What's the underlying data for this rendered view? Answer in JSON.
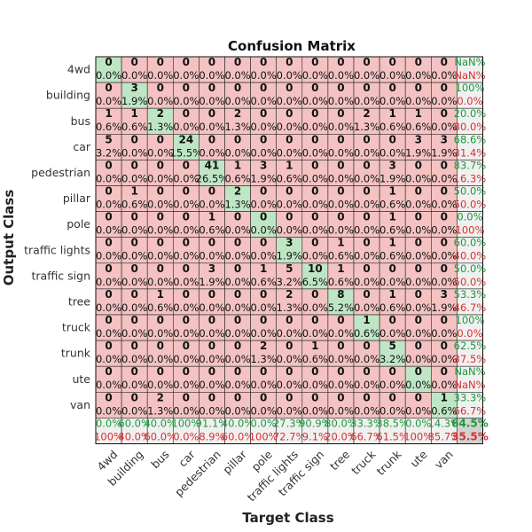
{
  "chart_data": {
    "type": "heatmap",
    "title": "Confusion Matrix",
    "xlabel": "Target Class",
    "ylabel": "Output Class",
    "classes": [
      "4wd",
      "building",
      "bus",
      "car",
      "pedestrian",
      "pillar",
      "pole",
      "traffic lights",
      "traffic sign",
      "tree",
      "truck",
      "trunk",
      "ute",
      "van"
    ],
    "matrix": [
      [
        0,
        0,
        0,
        0,
        0,
        0,
        0,
        0,
        0,
        0,
        0,
        0,
        0,
        0
      ],
      [
        0,
        3,
        0,
        0,
        0,
        0,
        0,
        0,
        0,
        0,
        0,
        0,
        0,
        0
      ],
      [
        1,
        1,
        2,
        0,
        0,
        2,
        0,
        0,
        0,
        0,
        2,
        1,
        1,
        0
      ],
      [
        5,
        0,
        0,
        24,
        0,
        0,
        0,
        0,
        0,
        0,
        0,
        0,
        3,
        3
      ],
      [
        0,
        0,
        0,
        0,
        41,
        1,
        3,
        1,
        0,
        0,
        0,
        3,
        0,
        0
      ],
      [
        0,
        1,
        0,
        0,
        0,
        2,
        0,
        0,
        0,
        0,
        0,
        1,
        0,
        0
      ],
      [
        0,
        0,
        0,
        0,
        1,
        0,
        0,
        0,
        0,
        0,
        0,
        1,
        0,
        0
      ],
      [
        0,
        0,
        0,
        0,
        0,
        0,
        0,
        3,
        0,
        1,
        0,
        1,
        0,
        0
      ],
      [
        0,
        0,
        0,
        0,
        3,
        0,
        1,
        5,
        10,
        1,
        0,
        0,
        0,
        0
      ],
      [
        0,
        0,
        1,
        0,
        0,
        0,
        0,
        2,
        0,
        8,
        0,
        1,
        0,
        3
      ],
      [
        0,
        0,
        0,
        0,
        0,
        0,
        0,
        0,
        0,
        0,
        1,
        0,
        0,
        0
      ],
      [
        0,
        0,
        0,
        0,
        0,
        0,
        2,
        0,
        1,
        0,
        0,
        5,
        0,
        0
      ],
      [
        0,
        0,
        0,
        0,
        0,
        0,
        0,
        0,
        0,
        0,
        0,
        0,
        0,
        0
      ],
      [
        0,
        0,
        2,
        0,
        0,
        0,
        0,
        0,
        0,
        0,
        0,
        0,
        0,
        1
      ]
    ],
    "cell_percent": [
      [
        "0.0%",
        "0.0%",
        "0.0%",
        "0.0%",
        "0.0%",
        "0.0%",
        "0.0%",
        "0.0%",
        "0.0%",
        "0.0%",
        "0.0%",
        "0.0%",
        "0.0%",
        "0.0%"
      ],
      [
        "0.0%",
        "1.9%",
        "0.0%",
        "0.0%",
        "0.0%",
        "0.0%",
        "0.0%",
        "0.0%",
        "0.0%",
        "0.0%",
        "0.0%",
        "0.0%",
        "0.0%",
        "0.0%"
      ],
      [
        "0.6%",
        "0.6%",
        "1.3%",
        "0.0%",
        "0.0%",
        "1.3%",
        "0.0%",
        "0.0%",
        "0.0%",
        "0.0%",
        "1.3%",
        "0.6%",
        "0.6%",
        "0.0%"
      ],
      [
        "3.2%",
        "0.0%",
        "0.0%",
        "15.5%",
        "0.0%",
        "0.0%",
        "0.0%",
        "0.0%",
        "0.0%",
        "0.0%",
        "0.0%",
        "0.0%",
        "1.9%",
        "1.9%"
      ],
      [
        "0.0%",
        "0.0%",
        "0.0%",
        "0.0%",
        "26.5%",
        "0.6%",
        "1.9%",
        "0.6%",
        "0.0%",
        "0.0%",
        "0.0%",
        "1.9%",
        "0.0%",
        "0.0%"
      ],
      [
        "0.0%",
        "0.6%",
        "0.0%",
        "0.0%",
        "0.0%",
        "1.3%",
        "0.0%",
        "0.0%",
        "0.0%",
        "0.0%",
        "0.0%",
        "0.6%",
        "0.0%",
        "0.0%"
      ],
      [
        "0.0%",
        "0.0%",
        "0.0%",
        "0.0%",
        "0.6%",
        "0.0%",
        "0.0%",
        "0.0%",
        "0.0%",
        "0.0%",
        "0.0%",
        "0.6%",
        "0.0%",
        "0.0%"
      ],
      [
        "0.0%",
        "0.0%",
        "0.0%",
        "0.0%",
        "0.0%",
        "0.0%",
        "0.0%",
        "1.9%",
        "0.0%",
        "0.6%",
        "0.0%",
        "0.6%",
        "0.0%",
        "0.0%"
      ],
      [
        "0.0%",
        "0.0%",
        "0.0%",
        "0.0%",
        "1.9%",
        "0.0%",
        "0.6%",
        "3.2%",
        "6.5%",
        "0.6%",
        "0.0%",
        "0.0%",
        "0.0%",
        "0.0%"
      ],
      [
        "0.0%",
        "0.0%",
        "0.6%",
        "0.0%",
        "0.0%",
        "0.0%",
        "0.0%",
        "1.3%",
        "0.0%",
        "5.2%",
        "0.0%",
        "0.6%",
        "0.0%",
        "1.9%"
      ],
      [
        "0.0%",
        "0.0%",
        "0.0%",
        "0.0%",
        "0.0%",
        "0.0%",
        "0.0%",
        "0.0%",
        "0.0%",
        "0.0%",
        "0.6%",
        "0.0%",
        "0.0%",
        "0.0%"
      ],
      [
        "0.0%",
        "0.0%",
        "0.0%",
        "0.0%",
        "0.0%",
        "0.0%",
        "1.3%",
        "0.0%",
        "0.6%",
        "0.0%",
        "0.0%",
        "3.2%",
        "0.0%",
        "0.0%"
      ],
      [
        "0.0%",
        "0.0%",
        "0.0%",
        "0.0%",
        "0.0%",
        "0.0%",
        "0.0%",
        "0.0%",
        "0.0%",
        "0.0%",
        "0.0%",
        "0.0%",
        "0.0%",
        "0.0%"
      ],
      [
        "0.0%",
        "0.0%",
        "1.3%",
        "0.0%",
        "0.0%",
        "0.0%",
        "0.0%",
        "0.0%",
        "0.0%",
        "0.0%",
        "0.0%",
        "0.0%",
        "0.0%",
        "0.6%"
      ]
    ],
    "row_summary": [
      [
        "NaN%",
        "NaN%"
      ],
      [
        "100%",
        "0.0%"
      ],
      [
        "20.0%",
        "80.0%"
      ],
      [
        "68.6%",
        "31.4%"
      ],
      [
        "83.7%",
        "16.3%"
      ],
      [
        "50.0%",
        "50.0%"
      ],
      [
        "0.0%",
        "100%"
      ],
      [
        "60.0%",
        "40.0%"
      ],
      [
        "50.0%",
        "50.0%"
      ],
      [
        "53.3%",
        "46.7%"
      ],
      [
        "100%",
        "0.0%"
      ],
      [
        "62.5%",
        "37.5%"
      ],
      [
        "NaN%",
        "NaN%"
      ],
      [
        "33.3%",
        "66.7%"
      ]
    ],
    "col_summary": [
      [
        "0.0%",
        "100%"
      ],
      [
        "60.0%",
        "40.0%"
      ],
      [
        "40.0%",
        "60.0%"
      ],
      [
        "100%",
        "0.0%"
      ],
      [
        "91.1%",
        "8.9%"
      ],
      [
        "40.0%",
        "60.0%"
      ],
      [
        "0.0%",
        "100%"
      ],
      [
        "27.3%",
        "72.7%"
      ],
      [
        "90.9%",
        "9.1%"
      ],
      [
        "80.0%",
        "20.0%"
      ],
      [
        "33.3%",
        "66.7%"
      ],
      [
        "38.5%",
        "61.5%"
      ],
      [
        "0.0%",
        "100%"
      ],
      [
        "14.3%",
        "85.7%"
      ]
    ],
    "overall": [
      "64.5%",
      "35.5%"
    ]
  },
  "colors": {
    "correct": "#bfe6c4",
    "wrong": "#f4c2c2",
    "summary": "#f0f0f0",
    "overall": "#d2d2d2",
    "green_text": "#1a9a3a",
    "red_text": "#d93030"
  }
}
